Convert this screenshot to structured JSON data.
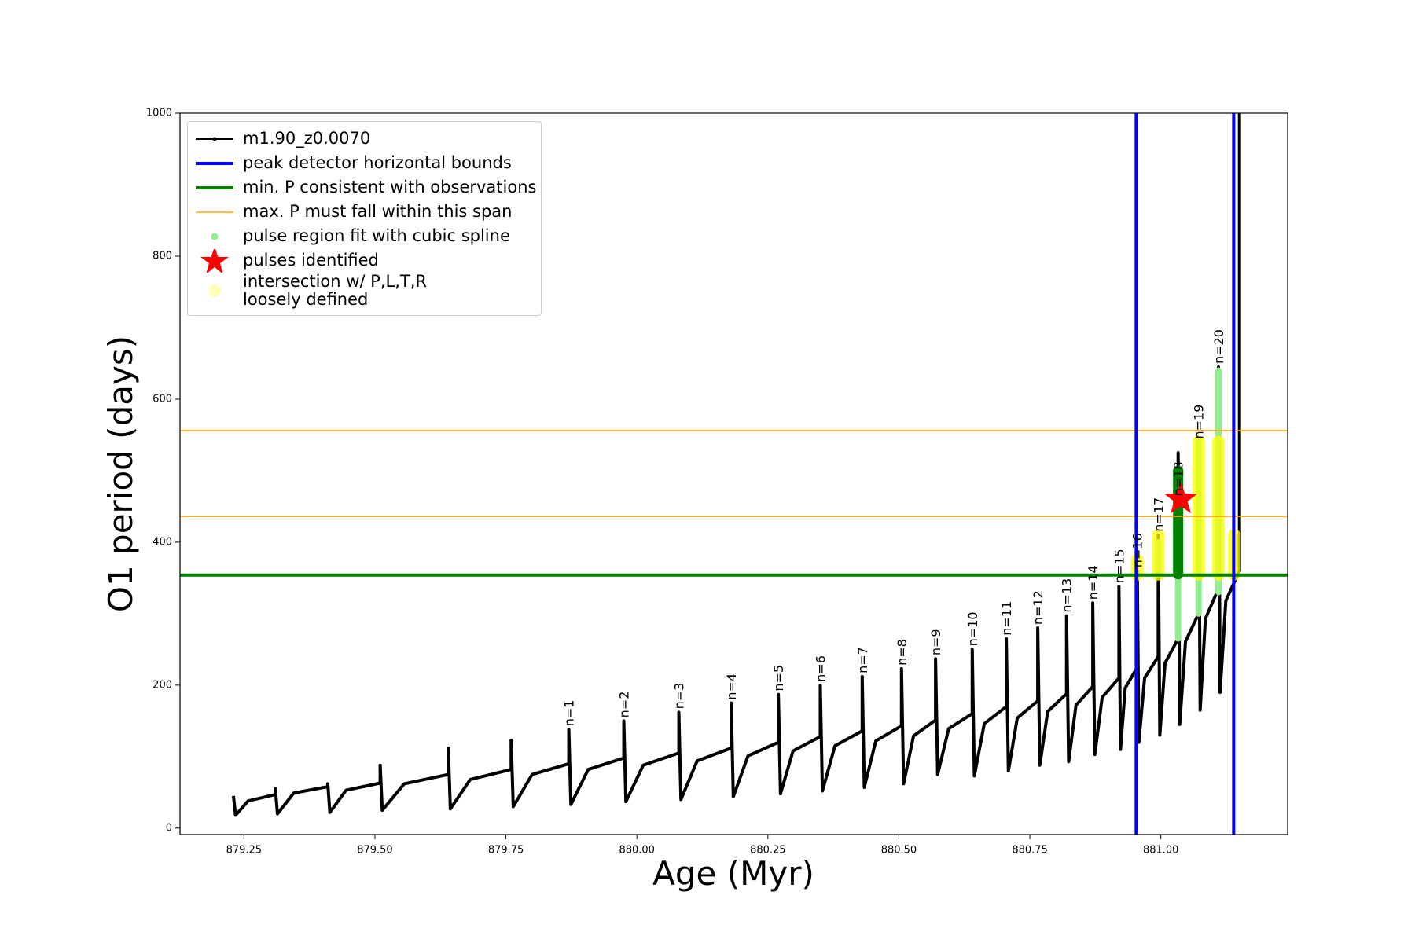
{
  "chart_data": {
    "type": "line",
    "x_label": "Age (Myr)",
    "y_label": "O1 period (days)",
    "xlim": [
      879.128,
      881.242
    ],
    "ylim": [
      -9,
      1000
    ],
    "xticks": [
      879.25,
      {
        "value": 879.5,
        "label": "879.50"
      },
      879.75,
      {
        "value": 880.0,
        "label": "880.00"
      },
      880.25,
      {
        "value": 880.5,
        "label": "880.50"
      },
      880.75,
      {
        "value": 881.0,
        "label": "881.00"
      }
    ],
    "yticks": [
      0,
      200,
      400,
      600,
      800,
      1000
    ],
    "series": [
      {
        "name": "m1.90_z0.0070",
        "color": "#000000",
        "x": [
          879.23,
          879.234,
          879.258,
          879.31,
          879.31,
          879.314,
          879.345,
          879.41,
          879.41,
          879.414,
          879.445,
          879.51,
          879.51,
          879.514,
          879.556,
          879.64,
          879.64,
          879.644,
          879.682,
          879.76,
          879.76,
          879.764,
          879.8,
          879.87,
          879.87,
          879.874,
          879.907,
          879.975,
          879.975,
          879.979,
          880.012,
          880.08,
          880.08,
          880.084,
          880.115,
          880.18,
          880.18,
          880.184,
          880.212,
          880.27,
          880.27,
          880.274,
          880.298,
          880.35,
          880.35,
          880.354,
          880.378,
          880.43,
          880.43,
          880.434,
          880.456,
          880.505,
          880.505,
          880.509,
          880.528,
          880.57,
          880.57,
          880.574,
          880.595,
          880.64,
          880.64,
          880.644,
          880.663,
          880.705,
          880.705,
          880.709,
          880.726,
          880.765,
          880.765,
          880.769,
          880.784,
          880.82,
          880.82,
          880.824,
          880.838,
          880.87,
          880.87,
          880.874,
          880.888,
          880.92,
          880.92,
          880.923,
          880.932,
          880.955,
          880.955,
          880.958,
          880.969,
          880.995,
          880.995,
          880.998,
          881.008,
          881.033,
          881.033,
          881.036,
          881.047,
          881.072,
          881.072,
          881.075,
          881.085,
          881.11,
          881.11,
          881.113,
          881.124,
          881.15,
          881.15
        ],
        "values": [
          45,
          18,
          38,
          47,
          55,
          20,
          49,
          58,
          62,
          22,
          53,
          63,
          88,
          25,
          62,
          75,
          112,
          27,
          68,
          82,
          123,
          30,
          75,
          90,
          138,
          33,
          82,
          98,
          150,
          37,
          88,
          105,
          162,
          40,
          94,
          112,
          175,
          44,
          101,
          120,
          187,
          48,
          108,
          128,
          200,
          52,
          115,
          136,
          212,
          57,
          122,
          143,
          223,
          62,
          129,
          151,
          237,
          75,
          139,
          160,
          250,
          73,
          146,
          170,
          265,
          80,
          154,
          178,
          280,
          88,
          163,
          188,
          297,
          93,
          172,
          198,
          315,
          103,
          183,
          210,
          338,
          110,
          196,
          225,
          360,
          120,
          210,
          240,
          410,
          130,
          231,
          265,
          525,
          145,
          261,
          300,
          540,
          165,
          293,
          335,
          645,
          190,
          318,
          360,
          1000
        ]
      }
    ],
    "vlines": {
      "name": "peak detector horizontal bounds",
      "color": "#0000ff",
      "x": [
        880.953,
        881.139
      ]
    },
    "min_period": {
      "name": "min. P consistent with observations",
      "color": "#008000",
      "value": 354
    },
    "max_period_span": {
      "name": "max. P must fall within this span",
      "color": "#ffa500",
      "values": [
        436,
        556
      ]
    },
    "spline_regions": {
      "name": "pulse region fit with cubic spline",
      "color": "#90ee90",
      "x": [
        880.995,
        881.033,
        881.072,
        881.11
      ],
      "lo": [
        355,
        265,
        300,
        330
      ],
      "hi": [
        400,
        450,
        540,
        640
      ]
    },
    "pulses": {
      "name": "pulses identified",
      "color": "#ff0000",
      "x": [
        881.038
      ],
      "values": [
        460
      ]
    },
    "loose_intersections": {
      "name": "intersection w/ P,L,T,R\nloosely defined",
      "color": "#ffff00",
      "x": [
        880.955,
        880.995,
        881.072,
        881.11,
        881.14
      ],
      "lo": [
        355,
        355,
        355,
        355,
        355
      ],
      "hi": [
        375,
        410,
        540,
        540,
        410
      ]
    },
    "selected_region": {
      "color": "#008000",
      "x": [
        881.033
      ],
      "lo": [
        355
      ],
      "hi": [
        500
      ]
    },
    "annotations": {
      "texts": [
        "n=1",
        "n=2",
        "n=3",
        "n=4",
        "n=5",
        "n=6",
        "n=7",
        "n=8",
        "n=9",
        "n=10",
        "n=11",
        "n=12",
        "n=13",
        "n=14",
        "n=15",
        "n=16",
        "n=17",
        "n=18",
        "n=19",
        "n=20"
      ],
      "x": [
        879.87,
        879.975,
        880.08,
        880.18,
        880.27,
        880.35,
        880.43,
        880.505,
        880.57,
        880.64,
        880.705,
        880.765,
        880.82,
        880.87,
        880.92,
        880.955,
        880.995,
        881.033,
        881.072,
        881.11
      ],
      "y": [
        138,
        150,
        162,
        175,
        187,
        200,
        212,
        223,
        237,
        250,
        265,
        280,
        297,
        315,
        338,
        360,
        410,
        460,
        540,
        645
      ]
    }
  }
}
